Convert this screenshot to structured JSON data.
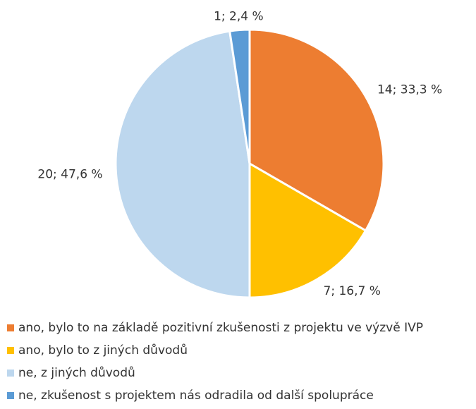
{
  "chart_data": {
    "type": "pie",
    "categories": [
      "ano, bylo to na základě pozitivní zkušenosti z projektu ve výzvě IVP",
      "ano, bylo to z jiných důvodů",
      "ne, z jiných důvodů",
      "ne, zkušenost s projektem nás odradila od další spolupráce"
    ],
    "values": [
      14,
      7,
      20,
      1
    ],
    "value_labels": [
      "14; 33,3 %",
      "7; 16,7 %",
      "20; 47,6 %",
      "1; 2,4 %"
    ],
    "colors": [
      "#ed7d31",
      "#ffc000",
      "#bdd7ee",
      "#5b9bd5"
    ]
  }
}
